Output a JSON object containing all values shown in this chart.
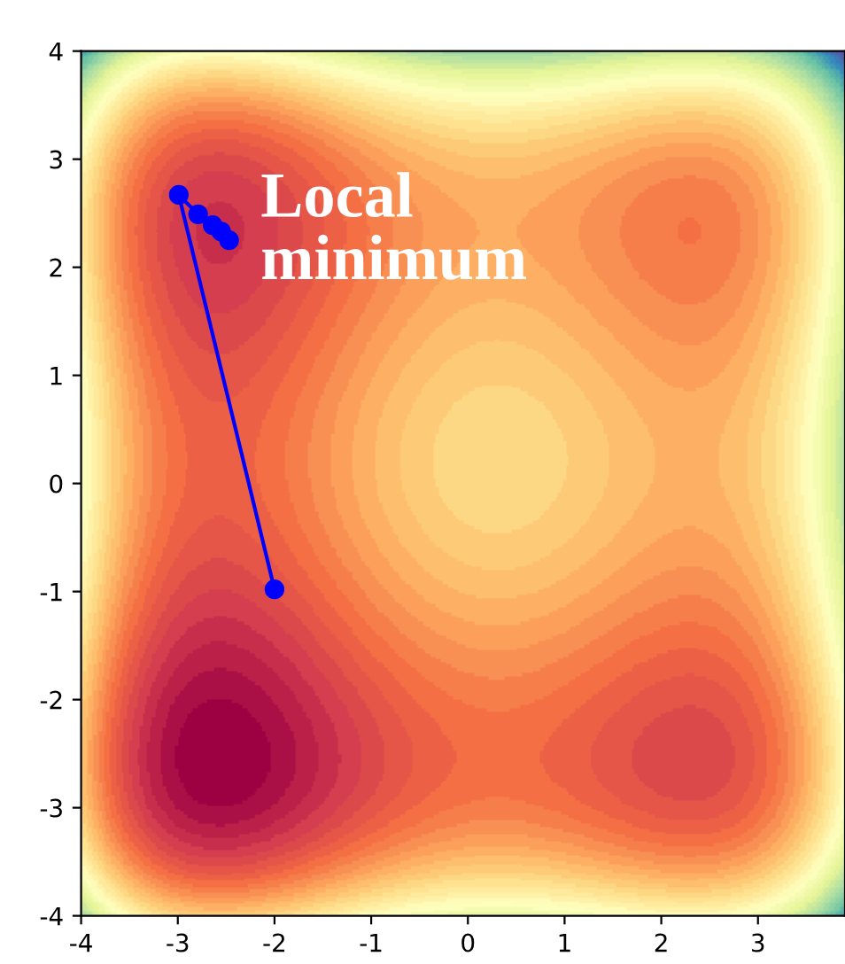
{
  "chart_data": {
    "type": "line",
    "x": [
      -2.0,
      -2.99,
      -2.79,
      -2.64,
      -2.55,
      -2.47
    ],
    "values": [
      -0.98,
      2.67,
      2.49,
      2.39,
      2.33,
      2.25
    ],
    "color": "#0000ff",
    "marker": "circle",
    "line_style": "solid",
    "xlim": [
      -4,
      3.9
    ],
    "ylim": [
      -4,
      4
    ],
    "xticks": [
      -4,
      -3,
      -2,
      -1,
      0,
      1,
      2,
      3
    ],
    "yticks": [
      -4,
      -3,
      -2,
      -1,
      0,
      1,
      2,
      3,
      4
    ],
    "grid": false,
    "legend": false,
    "annotations": [
      "Local\nminimum"
    ]
  }
}
